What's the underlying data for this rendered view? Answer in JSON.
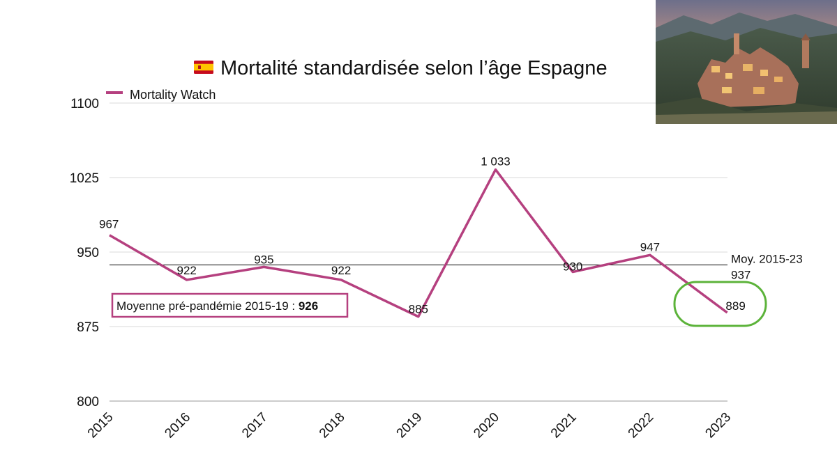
{
  "title": "Mortalité standardisée selon l’âge Espagne",
  "flag_icon": "spain-flag-icon",
  "legend": {
    "label": "Mortality Watch",
    "position": "top-left"
  },
  "mean_line": {
    "label": "Moy. 2015-23",
    "value": 937
  },
  "annotation": {
    "text": "Moyenne pré-pandémie 2015-19 : ",
    "value": "926"
  },
  "highlight": {
    "year": "2023",
    "color": "#5cb33a"
  },
  "image": {
    "description_icon": "village-landscape-photo"
  },
  "colors": {
    "series": "#b5407f",
    "grid": "#d9d9d9",
    "mean": "#000000"
  },
  "chart_data": {
    "type": "line",
    "title": "Mortalité standardisée selon l’âge Espagne",
    "xlabel": "",
    "ylabel": "",
    "categories": [
      "2015",
      "2016",
      "2017",
      "2018",
      "2019",
      "2020",
      "2021",
      "2022",
      "2023"
    ],
    "series": [
      {
        "name": "Mortality Watch",
        "values": [
          967,
          922,
          935,
          922,
          885,
          1033,
          930,
          947,
          889
        ],
        "labels": [
          "967",
          "922",
          "935",
          "922",
          "885",
          "1 033",
          "930",
          "947",
          "889"
        ]
      }
    ],
    "ylim": [
      800,
      1100
    ],
    "yticks": [
      "800",
      "875",
      "950",
      "1025",
      "1100"
    ],
    "ytick_values": [
      800,
      875,
      950,
      1025,
      1100
    ],
    "grid": true,
    "reference_line": {
      "label": "Moy. 2015-23",
      "value": 937
    }
  }
}
